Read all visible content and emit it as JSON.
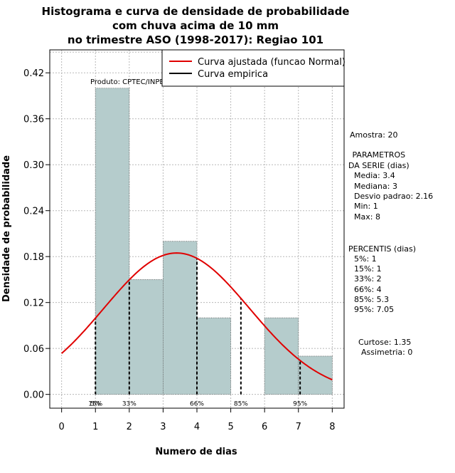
{
  "chart_data": {
    "type": "bar",
    "title_lines": [
      "Histograma e curva de densidade de probabilidade",
      "com chuva acima de 10 mm",
      "no trimestre ASO (1998-2017): Regiao 101"
    ],
    "xlabel": "Numero de dias",
    "ylabel": "Densidade de probabilidade",
    "xlim": [
      -0.35,
      8.35
    ],
    "ylim": [
      -0.018,
      0.45
    ],
    "xticks": [
      0,
      1,
      2,
      3,
      4,
      5,
      6,
      7,
      8
    ],
    "yticks": [
      0.0,
      0.06,
      0.12,
      0.18,
      0.24,
      0.3,
      0.36,
      0.42
    ],
    "ytick_labels": [
      "0.00",
      "0.06",
      "0.12",
      "0.18",
      "0.24",
      "0.30",
      "0.36",
      "0.42"
    ],
    "grid": true,
    "bins": [
      {
        "x0": 1,
        "x1": 2,
        "density": 0.4
      },
      {
        "x0": 2,
        "x1": 3,
        "density": 0.15
      },
      {
        "x0": 3,
        "x1": 4,
        "density": 0.2
      },
      {
        "x0": 4,
        "x1": 5,
        "density": 0.1
      },
      {
        "x0": 5,
        "x1": 6,
        "density": 0.0
      },
      {
        "x0": 6,
        "x1": 7,
        "density": 0.1
      },
      {
        "x0": 7,
        "x1": 8,
        "density": 0.05
      }
    ],
    "bar_color": "#b5cccc",
    "fitted_curve": {
      "name": "Curva ajustada (funcao Normal)",
      "mean": 3.4,
      "sd": 2.16,
      "color": "#e00000",
      "x_range": [
        0,
        8
      ]
    },
    "empirical_curve": {
      "name": "Curva empirica",
      "color": "#000000"
    },
    "percentile_lines": [
      {
        "label": "5%",
        "x": 1
      },
      {
        "label": "15%",
        "x": 1
      },
      {
        "label": "33%",
        "x": 2
      },
      {
        "label": "66%",
        "x": 4
      },
      {
        "label": "85%",
        "x": 5.3
      },
      {
        "label": "95%",
        "x": 7.05
      }
    ],
    "product_label": "Produto: CPTEC/INPE",
    "legend_position": "top-right"
  },
  "side_panel": {
    "amostra": "Amostra: 20",
    "params_title_1": " PARAMETROS",
    "params_title_2": "DA SERIE (dias)",
    "params": [
      "Media: 3.4",
      "Mediana: 3",
      "Desvio padrao: 2.16",
      "Min: 1",
      "Max: 8"
    ],
    "percentis_title": "PERCENTIS (dias)",
    "percentis": [
      "5%: 1",
      "15%: 1",
      "33%: 2",
      "66%: 4",
      "85%: 5.3",
      "95%: 7.05"
    ],
    "curtose": "Curtose: 1.35",
    "assimetria": "Assimetria: 0"
  }
}
